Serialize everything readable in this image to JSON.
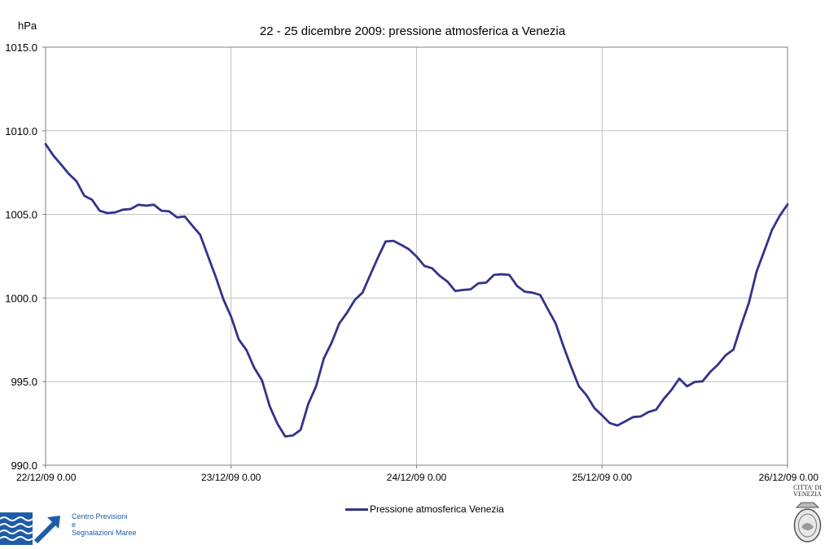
{
  "chart_data": {
    "type": "line",
    "title": "22 - 25 dicembre 2009: pressione atmosferica a Venezia",
    "ylabel": "hPa",
    "xlabel": "",
    "ylim": [
      990.0,
      1015.0
    ],
    "yticks": [
      "990.0",
      "995.0",
      "1000.0",
      "1005.0",
      "1010.0",
      "1015.0"
    ],
    "yticks_values": [
      990,
      995,
      1000,
      1005,
      1010,
      1015
    ],
    "xlim": [
      0,
      96
    ],
    "xticks": [
      "22/12/09 0.00",
      "23/12/09 0.00",
      "24/12/09 0.00",
      "25/12/09 0.00",
      "26/12/09 0.00"
    ],
    "xticks_values": [
      0,
      24,
      48,
      72,
      96
    ],
    "x_unit": "hours from 22/12/09 0.00",
    "grid": true,
    "legend_position": "bottom-center",
    "series": [
      {
        "name": "Pressione atmosferica Venezia",
        "color": "#33338a",
        "x": [
          0,
          1,
          2,
          3,
          4,
          5,
          6,
          7,
          8,
          9,
          10,
          11,
          12,
          13,
          14,
          15,
          16,
          17,
          18,
          19,
          20,
          21,
          22,
          23,
          24,
          25,
          26,
          27,
          28,
          29,
          30,
          31,
          32,
          33,
          34,
          35,
          36,
          37,
          38,
          39,
          40,
          41,
          42,
          43,
          44,
          45,
          46,
          47,
          48,
          49,
          50,
          51,
          52,
          53,
          54,
          55,
          56,
          57,
          58,
          59,
          60,
          61,
          62,
          63,
          64,
          65,
          66,
          67,
          68,
          69,
          70,
          71,
          72,
          73,
          74,
          75,
          76,
          77,
          78,
          79,
          80,
          81,
          82,
          83,
          84,
          85,
          86,
          87,
          88,
          89,
          90,
          91,
          92,
          93,
          94,
          95,
          96
        ],
        "values": [
          1009.2,
          1008.6,
          1007.9,
          1007.5,
          1006.9,
          1006.2,
          1005.8,
          1005.3,
          1005.0,
          1005.2,
          1005.2,
          1005.4,
          1005.5,
          1005.6,
          1005.5,
          1005.3,
          1005.1,
          1004.9,
          1004.8,
          1004.4,
          1003.7,
          1002.6,
          1001.2,
          1000.0,
          998.8,
          997.6,
          996.8,
          995.9,
          995.0,
          993.6,
          992.4,
          991.8,
          991.7,
          992.2,
          993.6,
          994.8,
          996.3,
          997.4,
          998.4,
          999.2,
          999.8,
          1000.4,
          1001.3,
          1002.5,
          1003.3,
          1003.5,
          1003.1,
          1003.0,
          1002.4,
          1002.0,
          1001.7,
          1001.4,
          1000.9,
          1000.5,
          1000.4,
          1000.6,
          1000.8,
          1001.0,
          1001.3,
          1001.5,
          1001.3,
          1000.8,
          1000.3,
          1000.4,
          1000.1,
          999.4,
          998.4,
          997.2,
          995.8,
          994.8,
          994.1,
          993.5,
          992.9,
          992.6,
          992.3,
          992.7,
          992.8,
          993.0,
          993.1,
          993.4,
          993.9,
          994.6,
          995.1,
          994.8,
          994.9,
          995.1,
          995.5,
          996.1,
          996.5,
          997.0,
          998.3,
          999.8,
          1001.5,
          1002.9,
          1004.0,
          1005.0,
          1005.6
        ]
      }
    ]
  },
  "logos": {
    "left": {
      "lines": [
        "Centro Previsioni",
        "e",
        "Segnalazioni Maree"
      ],
      "icon": "wave-arrow-logo"
    },
    "right": {
      "caption_lines": [
        "CITTA' DI",
        "VENEZIA"
      ],
      "icon": "city-seal-logo"
    }
  }
}
